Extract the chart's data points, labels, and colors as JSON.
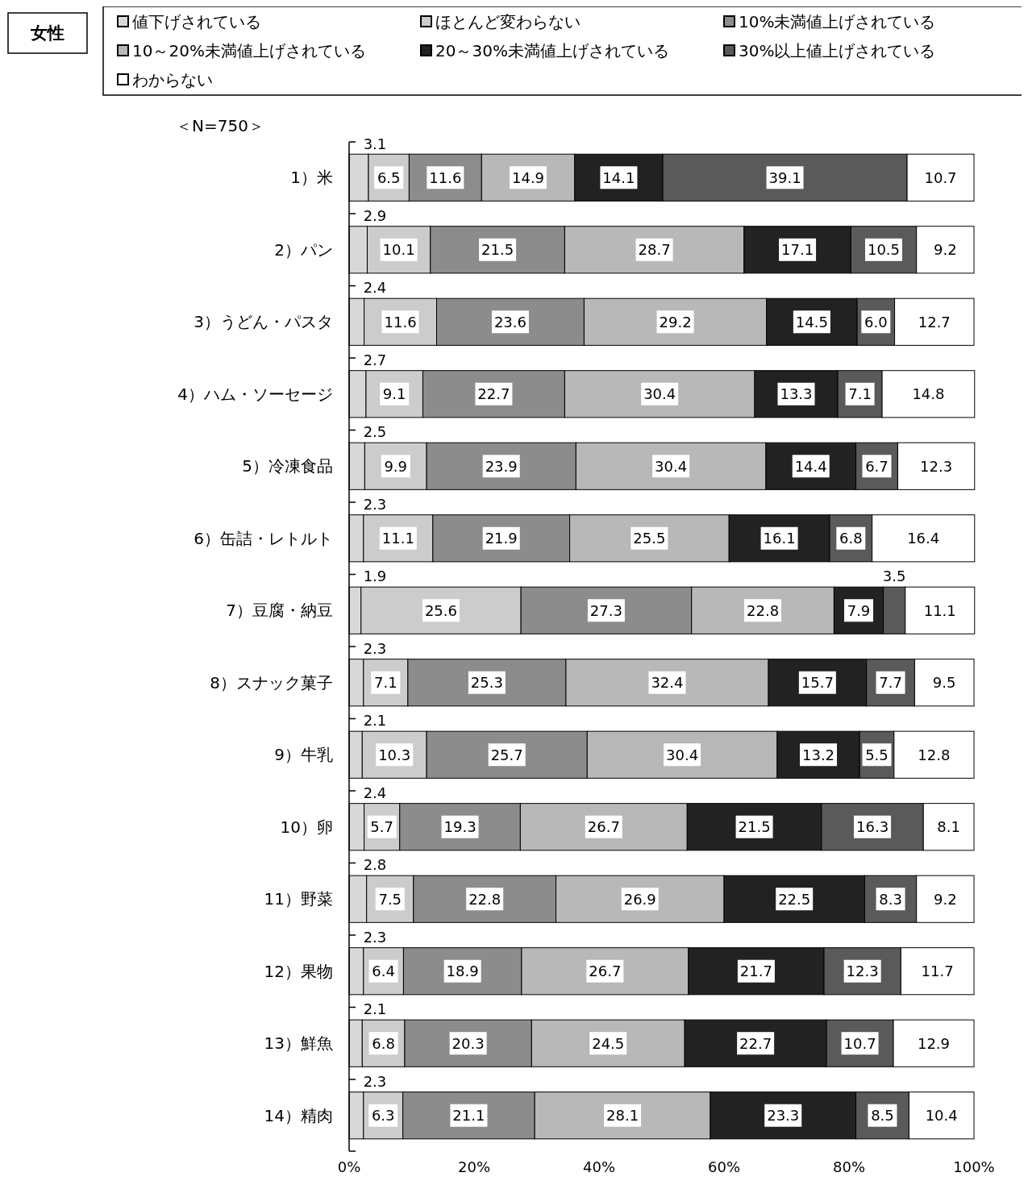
{
  "chart_data": {
    "type": "bar",
    "orientation": "horizontal",
    "stacked": true,
    "title": "女性",
    "subtitle": "＜N=750＞",
    "legend": "top",
    "categories": [
      "1）米",
      "2）パン",
      "3）うどん・パスタ",
      "4）ハム・ソーセージ",
      "5）冷凍食品",
      "6）缶詰・レトルト",
      "7）豆腐・納豆",
      "8）スナック菓子",
      "9）牛乳",
      "10）卵",
      "11）野菜",
      "12）果物",
      "13）鮮魚",
      "14）精肉"
    ],
    "xlim": [
      0,
      100
    ],
    "xticks": [
      {
        "value": 0,
        "label": "0%"
      },
      {
        "value": 20,
        "label": "20%"
      },
      {
        "value": 40,
        "label": "40%"
      },
      {
        "value": 60,
        "label": "60%"
      },
      {
        "value": 80,
        "label": "80%"
      },
      {
        "value": 100,
        "label": "100%"
      }
    ],
    "series": [
      {
        "name": "値下げされている",
        "color": "#d8d8d8",
        "values": [
          3.1,
          2.9,
          2.4,
          2.7,
          2.5,
          2.3,
          1.9,
          2.3,
          2.1,
          2.4,
          2.8,
          2.3,
          2.1,
          2.3
        ],
        "value_labels": [
          "3.1",
          "2.9",
          "2.4",
          "2.7",
          "2.5",
          "2.3",
          "1.9",
          "2.3",
          "2.1",
          "2.4",
          "2.8",
          "2.3",
          "2.1",
          "2.3"
        ]
      },
      {
        "name": "ほとんど変わらない",
        "color": "#cccccc",
        "values": [
          6.5,
          10.1,
          11.6,
          9.1,
          9.9,
          11.1,
          25.6,
          7.1,
          10.3,
          5.7,
          7.5,
          6.4,
          6.8,
          6.3
        ],
        "value_labels": [
          "6.5",
          "10.1",
          "11.6",
          "9.1",
          "9.9",
          "11.1",
          "25.6",
          "7.1",
          "10.3",
          "5.7",
          "7.5",
          "6.4",
          "6.8",
          "6.3"
        ]
      },
      {
        "name": "10%未満値上げされている",
        "color": "#8c8c8c",
        "values": [
          11.6,
          21.5,
          23.6,
          22.7,
          23.9,
          21.9,
          27.3,
          25.3,
          25.7,
          19.3,
          22.8,
          18.9,
          20.3,
          21.1
        ],
        "value_labels": [
          "11.6",
          "21.5",
          "23.6",
          "22.7",
          "23.9",
          "21.9",
          "27.3",
          "25.3",
          "25.7",
          "19.3",
          "22.8",
          "18.9",
          "20.3",
          "21.1"
        ]
      },
      {
        "name": "10～20%未満値上げされている",
        "color": "#b8b8b8",
        "values": [
          14.9,
          28.7,
          29.2,
          30.4,
          30.4,
          25.5,
          22.8,
          32.4,
          30.4,
          26.7,
          26.9,
          26.7,
          24.5,
          28.1
        ],
        "value_labels": [
          "14.9",
          "28.7",
          "29.2",
          "30.4",
          "30.4",
          "25.5",
          "22.8",
          "32.4",
          "30.4",
          "26.7",
          "26.9",
          "26.7",
          "24.5",
          "28.1"
        ]
      },
      {
        "name": "20～30%未満値上げされている",
        "color": "#222222",
        "values": [
          14.1,
          17.1,
          14.5,
          13.3,
          14.4,
          16.1,
          7.9,
          15.7,
          13.2,
          21.5,
          22.5,
          21.7,
          22.7,
          23.3
        ],
        "value_labels": [
          "14.1",
          "17.1",
          "14.5",
          "13.3",
          "14.4",
          "16.1",
          "7.9",
          "15.7",
          "13.2",
          "21.5",
          "22.5",
          "21.7",
          "22.7",
          "23.3"
        ]
      },
      {
        "name": "30%以上値上げされている",
        "color": "#5a5a5a",
        "values": [
          39.1,
          10.5,
          6.0,
          7.1,
          6.7,
          6.8,
          3.5,
          7.7,
          5.5,
          16.3,
          8.3,
          12.3,
          10.7,
          8.5
        ],
        "value_labels": [
          "39.1",
          "10.5",
          "6.0",
          "7.1",
          "6.7",
          "6.8",
          "3.5",
          "7.7",
          "5.5",
          "16.3",
          "8.3",
          "12.3",
          "10.7",
          "8.5"
        ]
      },
      {
        "name": "わからない",
        "color": "#ffffff",
        "values": [
          10.7,
          9.2,
          12.7,
          14.8,
          12.3,
          16.4,
          11.1,
          9.5,
          12.8,
          8.1,
          9.2,
          11.7,
          12.9,
          10.4
        ],
        "value_labels": [
          "10.7",
          "9.2",
          "12.7",
          "14.8",
          "12.3",
          "16.4",
          "11.1",
          "9.5",
          "12.8",
          "8.1",
          "9.2",
          "11.7",
          "12.9",
          "10.4"
        ]
      }
    ]
  }
}
